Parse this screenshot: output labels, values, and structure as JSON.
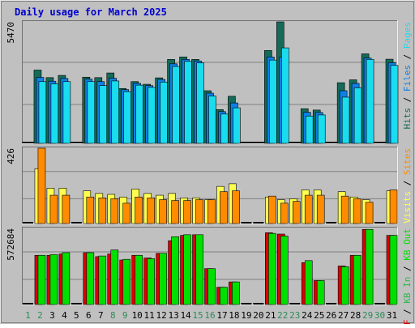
{
  "chart_data": {
    "type": "bar",
    "title": "Daily usage for March 2025",
    "categories": [
      "1",
      "2",
      "3",
      "4",
      "5",
      "6",
      "7",
      "8",
      "9",
      "10",
      "11",
      "12",
      "13",
      "14",
      "15",
      "16",
      "17",
      "18",
      "19",
      "20",
      "21",
      "22",
      "23",
      "24",
      "25",
      "26",
      "27",
      "28",
      "29",
      "30",
      "31"
    ],
    "weekend_days": [
      "1",
      "2",
      "8",
      "9",
      "15",
      "16",
      "22",
      "23",
      "29",
      "30"
    ],
    "colors": {
      "background": "#C0C0C0",
      "frame": "#A8A8A8",
      "title": "#0000CC",
      "hits": "#136B58",
      "files": "#0C80E8",
      "pages": "#1ADCEF",
      "visits": "#FFFF50",
      "sites": "#FF8C00",
      "kb_in": "#2DB84A",
      "kb_out": "#00E000",
      "kb_f": "#DD0000",
      "weekday_label": "#000000",
      "weekend_label": "#2E8B57"
    },
    "panels": [
      {
        "name": "hits-files-pages",
        "ytick": "5470",
        "ymax": 5470,
        "right_label": [
          {
            "text": "Hits",
            "color": "#136B58"
          },
          {
            "text": " / ",
            "color": "#000000"
          },
          {
            "text": "Files",
            "color": "#0C80E8"
          },
          {
            "text": " / ",
            "color": "#000000"
          },
          {
            "text": "Pages",
            "color": "#1ADCEF"
          }
        ],
        "series": [
          {
            "name": "Hits",
            "color": "#136B58",
            "values": [
              0,
              3300,
              2960,
              3060,
              0,
              2980,
              2960,
              3170,
              2470,
              2780,
              2660,
              2950,
              3780,
              3890,
              3780,
              2370,
              1520,
              2120,
              0,
              0,
              4180,
              5470,
              0,
              1560,
              1500,
              0,
              2730,
              2860,
              4030,
              0,
              3790
            ]
          },
          {
            "name": "Files",
            "color": "#0C80E8",
            "values": [
              0,
              2970,
              2800,
              2920,
              0,
              2890,
              2780,
              2930,
              2420,
              2700,
              2600,
              2880,
              3580,
              3780,
              3710,
              2260,
              1430,
              1820,
              0,
              0,
              3890,
              3870,
              0,
              1400,
              1390,
              0,
              2370,
              2700,
              3840,
              0,
              3630
            ]
          },
          {
            "name": "Pages",
            "color": "#1ADCEF",
            "values": [
              0,
              2780,
              2680,
              2780,
              0,
              2780,
              2600,
              2810,
              2330,
              2620,
              2520,
              2760,
              3460,
              3690,
              3620,
              2130,
              1320,
              1600,
              0,
              0,
              3750,
              4300,
              0,
              1230,
              1280,
              0,
              2080,
              2500,
              3780,
              0,
              3510
            ]
          }
        ]
      },
      {
        "name": "visits-sites",
        "ytick": "426",
        "ymax": 426,
        "right_label": [
          {
            "text": "Visits",
            "color": "#FFFF50"
          },
          {
            "text": " / ",
            "color": "#000000"
          },
          {
            "text": "Sites",
            "color": "#FF8C00"
          }
        ],
        "series": [
          {
            "name": "Visits",
            "color": "#FFFF50",
            "values": [
              0,
              310,
              200,
              200,
              0,
              185,
              170,
              165,
              150,
              195,
              170,
              160,
              170,
              145,
              145,
              135,
              210,
              225,
              0,
              0,
              150,
              135,
              140,
              190,
              190,
              0,
              180,
              150,
              135,
              0,
              185
            ]
          },
          {
            "name": "Sites",
            "color": "#FF8C00",
            "values": [
              0,
              426,
              160,
              160,
              0,
              150,
              145,
              140,
              115,
              150,
              145,
              135,
              130,
              130,
              135,
              135,
              180,
              185,
              0,
              0,
              155,
              115,
              125,
              160,
              160,
              0,
              155,
              140,
              120,
              0,
              190
            ]
          }
        ]
      },
      {
        "name": "kbf-kbin-kbout",
        "ytick": "572684",
        "ymax": 572684,
        "right_label": [
          {
            "text": "KB F",
            "color": "#DD0000"
          },
          {
            "text": " / ",
            "color": "#000000"
          },
          {
            "text": "KB In",
            "color": "#2DB84A"
          },
          {
            "text": " / ",
            "color": "#000000"
          },
          {
            "text": "KB Out",
            "color": "#00E000"
          }
        ],
        "series": [
          {
            "name": "KB F",
            "color": "#DD0000",
            "values": [
              0,
              370000,
              370000,
              380000,
              0,
              390000,
              360000,
              380000,
              335000,
              370000,
              350000,
              385000,
              480000,
              520000,
              525000,
              270000,
              130000,
              170000,
              0,
              0,
              540000,
              530000,
              0,
              315000,
              180000,
              0,
              290000,
              370000,
              565000,
              0,
              520000
            ]
          },
          {
            "name": "KB Out",
            "color": "#00E000",
            "values": [
              0,
              370000,
              375000,
              390000,
              0,
              390000,
              365000,
              410000,
              340000,
              370000,
              345000,
              385000,
              510000,
              525000,
              525000,
              270000,
              130000,
              170000,
              0,
              0,
              535000,
              515000,
              0,
              330000,
              180000,
              0,
              285000,
              370000,
              565000,
              0,
              520000
            ]
          }
        ]
      }
    ]
  }
}
